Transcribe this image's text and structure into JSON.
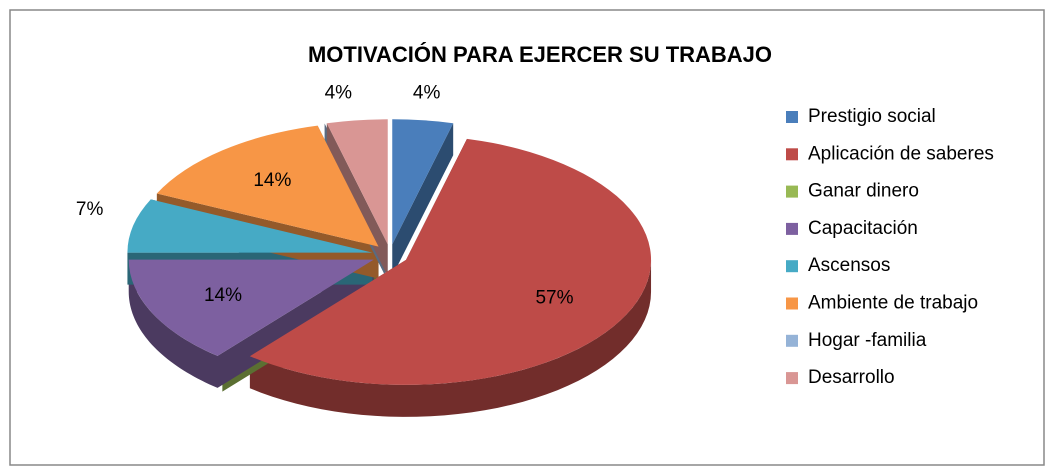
{
  "chart_data": {
    "type": "pie3d",
    "title": "MOTIVACIÓN PARA EJERCER SU TRABAJO",
    "categories": [
      "Prestigio social",
      "Aplicación de saberes",
      "Ganar dinero",
      "Capacitación",
      "Ascensos",
      "Ambiente de trabajo",
      "Hogar -familia",
      "Desarrollo"
    ],
    "values": [
      4,
      57,
      0,
      14,
      7,
      14,
      0,
      4
    ],
    "value_labels": [
      "4%",
      "57%",
      null,
      "14%",
      "7%",
      "14%",
      null,
      "4%"
    ],
    "colors": [
      "#4a7ebb",
      "#be4b48",
      "#98b954",
      "#7d60a0",
      "#46aac5",
      "#f79646",
      "#95b3d7",
      "#d99694"
    ],
    "legend": "right"
  }
}
